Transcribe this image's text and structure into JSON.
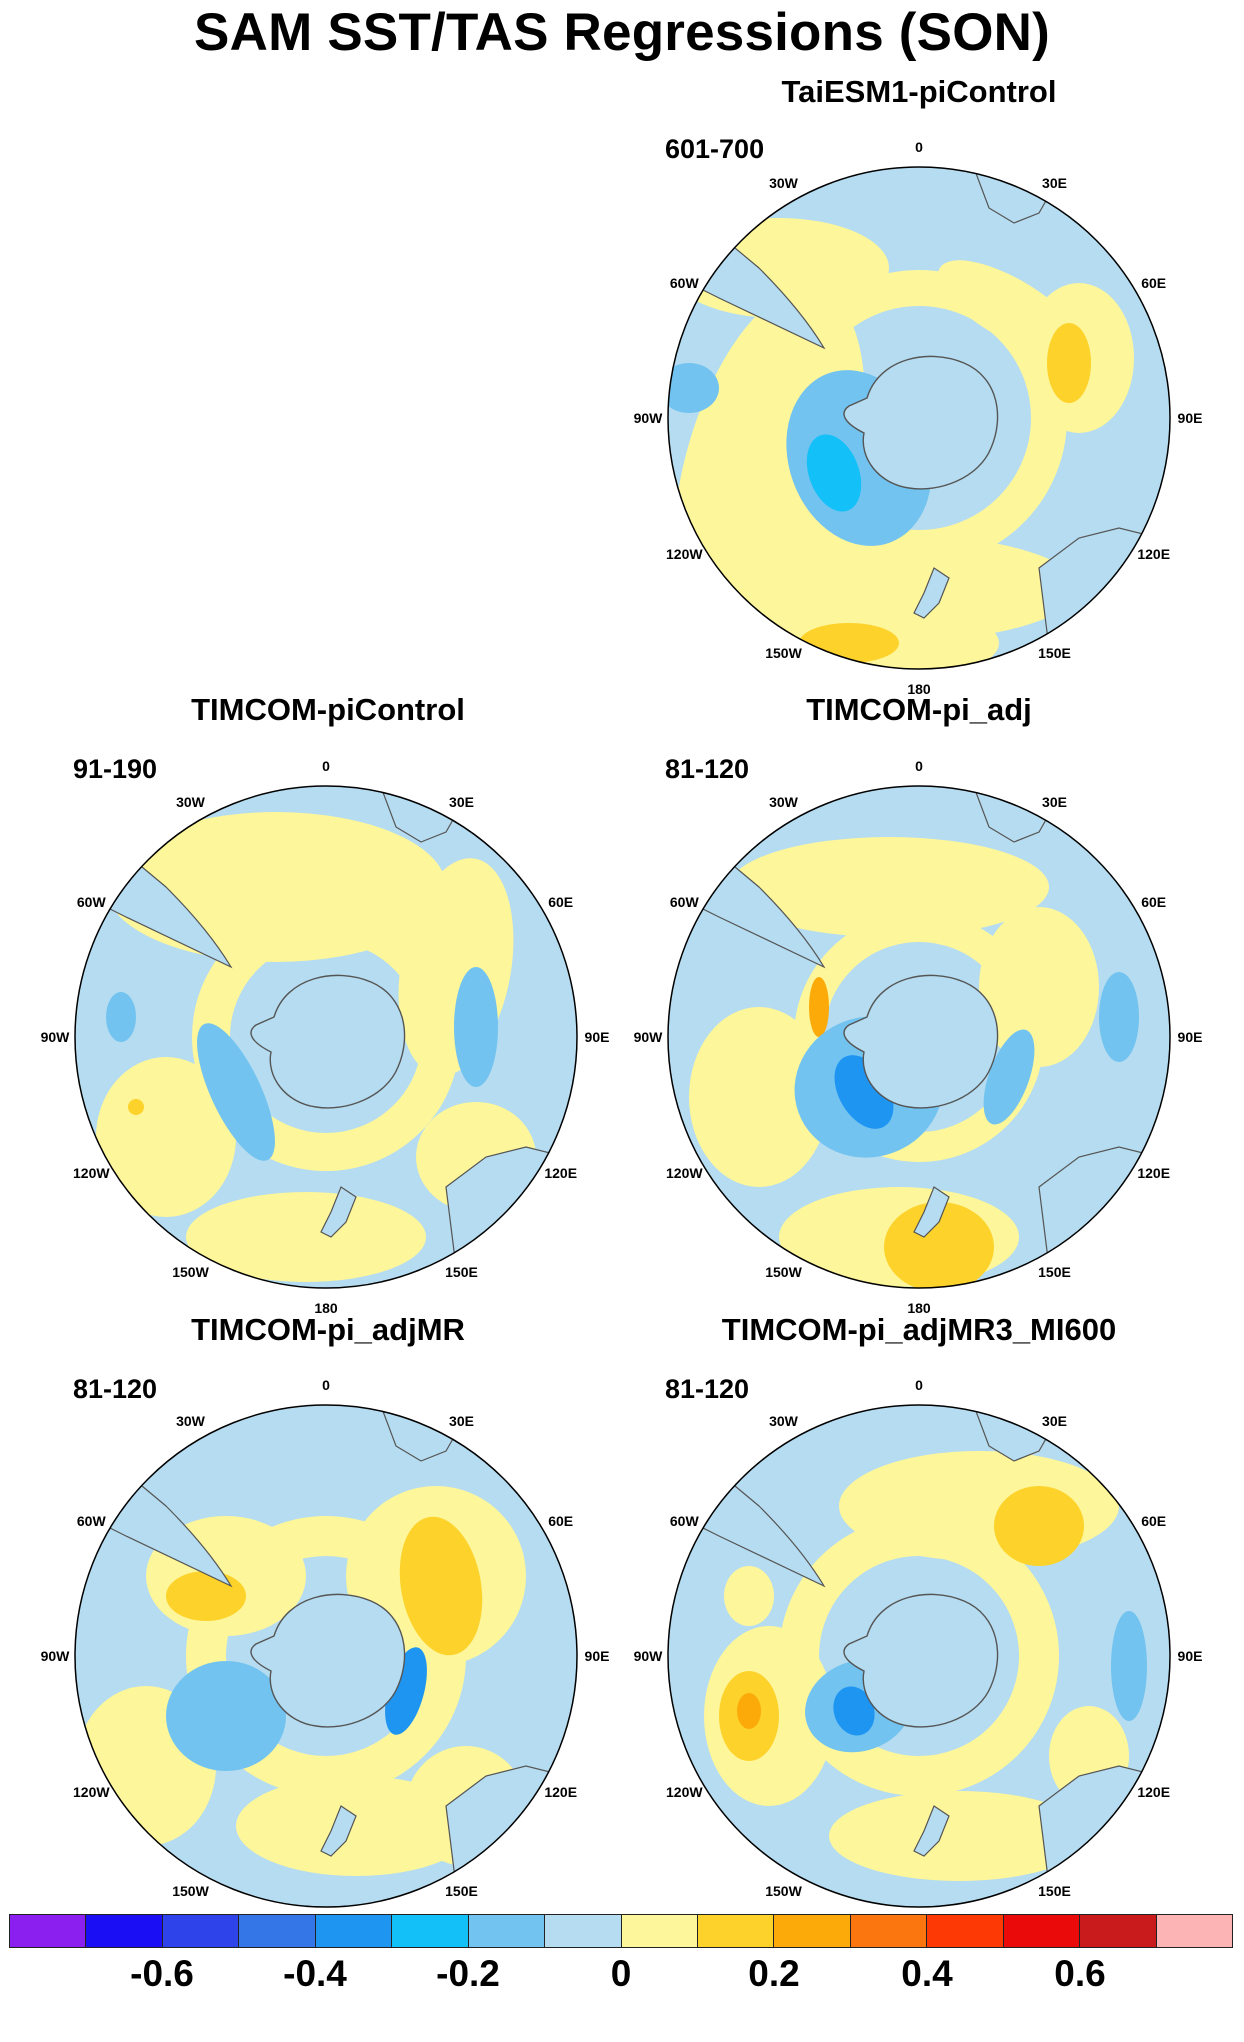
{
  "title": "SAM SST/TAS Regressions (SON)",
  "colors": {
    "land": "#b5dcf0",
    "ocean_default": "#b5dcf0",
    "coast": "#555555",
    "bin_neg_0_1_to_0": "#b5dcf0",
    "bin_0_to_0_1": "#fef69a",
    "bin_0_1_to_0_2": "#fdd22b",
    "bin_0_2_to_0_3": "#fbaa0a",
    "bin_neg_0_2_to_neg_0_1": "#72c3f0",
    "bin_neg_0_3_to_neg_0_2": "#13c0f7",
    "bin_neg_0_4_to_neg_0_3": "#1f95f2"
  },
  "colorbar": {
    "swatches": [
      "#8a1ff0",
      "#1a0ef5",
      "#2e44ea",
      "#3476e8",
      "#1f95f2",
      "#13c0f7",
      "#72c3f0",
      "#b5dcf0",
      "#fef69a",
      "#fdd22b",
      "#fbaa0a",
      "#fc7610",
      "#fd3a06",
      "#ea0a0a",
      "#c91b1b",
      "#fdb4b4"
    ],
    "tick_labels": [
      "-0.6",
      "-0.4",
      "-0.2",
      "0",
      "0.2",
      "0.4",
      "0.6"
    ]
  },
  "degree_labels": [
    "0",
    "30E",
    "60E",
    "90E",
    "120E",
    "150E",
    "180",
    "150W",
    "120W",
    "90W",
    "60W",
    "30W"
  ],
  "panels": [
    {
      "name": "TaiESM1-piControl",
      "years": "601-700"
    },
    {
      "name": "TIMCOM-piControl",
      "years": "91-190"
    },
    {
      "name": "TIMCOM-pi_adj",
      "years": "81-120"
    },
    {
      "name": "TIMCOM-pi_adjMR",
      "years": "81-120"
    },
    {
      "name": "TIMCOM-pi_adjMR3_MI600",
      "years": "81-120"
    }
  ]
}
